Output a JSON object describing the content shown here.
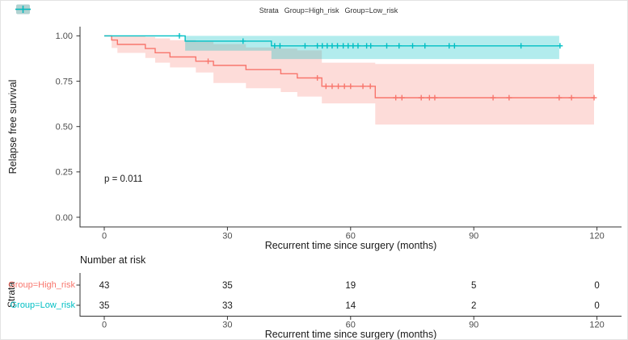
{
  "chart_data": {
    "type": "km_survival_step",
    "title": "",
    "xlabel": "Recurrent time since surgery (months)",
    "ylabel": "Relapse free survival",
    "xticks": [
      0,
      30,
      60,
      90,
      120
    ],
    "ytick_labels": [
      "0.00",
      "0.25",
      "0.50",
      "0.75",
      "1.00"
    ],
    "ytick_values": [
      0,
      0.25,
      0.5,
      0.75,
      1.0
    ],
    "xlim": [
      0,
      120
    ],
    "ylim": [
      0,
      1
    ],
    "grid": "off",
    "legend_position": "top",
    "legend_title": "Strata",
    "pvalue": "p = 0.011",
    "series": [
      {
        "name": "Group=High_risk",
        "color": "#F8766D",
        "fill": "rgba(248,118,109,0.26)",
        "steps": [
          [
            0,
            1.0
          ],
          [
            1.8,
            0.977
          ],
          [
            3.2,
            0.953
          ],
          [
            10,
            0.93
          ],
          [
            12.4,
            0.907
          ],
          [
            16,
            0.884
          ],
          [
            22.3,
            0.86
          ],
          [
            26.6,
            0.837
          ],
          [
            34.5,
            0.814
          ],
          [
            43,
            0.791
          ],
          [
            47,
            0.768
          ],
          [
            53,
            0.722
          ],
          [
            66,
            0.659
          ],
          [
            119.3,
            0.659
          ]
        ],
        "censors": [
          [
            25.3,
            0.86
          ],
          [
            51.9,
            0.768
          ],
          [
            54,
            0.722
          ],
          [
            55.5,
            0.722
          ],
          [
            57,
            0.722
          ],
          [
            58.5,
            0.722
          ],
          [
            60,
            0.722
          ],
          [
            63,
            0.722
          ],
          [
            64.8,
            0.722
          ],
          [
            71,
            0.659
          ],
          [
            72.5,
            0.659
          ],
          [
            77.2,
            0.659
          ],
          [
            79.2,
            0.659
          ],
          [
            80.5,
            0.659
          ],
          [
            94.7,
            0.659
          ],
          [
            98.6,
            0.659
          ],
          [
            110.8,
            0.659
          ],
          [
            113.8,
            0.659
          ],
          [
            119.3,
            0.659
          ]
        ],
        "ci_hi": [
          [
            1.8,
            1.0
          ],
          [
            3.2,
            0.999
          ],
          [
            10,
            0.994
          ],
          [
            12.4,
            0.986
          ],
          [
            16,
            0.976
          ],
          [
            22.3,
            0.968
          ],
          [
            26.6,
            0.955
          ],
          [
            34.5,
            0.936
          ],
          [
            43,
            0.93
          ],
          [
            47,
            0.92
          ],
          [
            53,
            0.852
          ],
          [
            66,
            0.845
          ],
          [
            119.3,
            0.845
          ]
        ],
        "ci_lo": [
          [
            1.8,
            0.933
          ],
          [
            3.2,
            0.906
          ],
          [
            10,
            0.878
          ],
          [
            12.4,
            0.852
          ],
          [
            16,
            0.826
          ],
          [
            22.3,
            0.798
          ],
          [
            26.6,
            0.74
          ],
          [
            34.5,
            0.711
          ],
          [
            43,
            0.69
          ],
          [
            47,
            0.665
          ],
          [
            53,
            0.628
          ],
          [
            66,
            0.511
          ],
          [
            119.3,
            0.511
          ]
        ]
      },
      {
        "name": "Group=Low_risk",
        "color": "#00BFC4",
        "fill": "rgba(0,191,196,0.30)",
        "steps": [
          [
            0,
            1.0
          ],
          [
            19.7,
            0.971
          ],
          [
            40.7,
            0.945
          ],
          [
            111,
            0.945
          ]
        ],
        "censors": [
          [
            18.3,
            1.0
          ],
          [
            33.8,
            0.971
          ],
          [
            41.5,
            0.945
          ],
          [
            42.8,
            0.945
          ],
          [
            48.9,
            0.945
          ],
          [
            51.9,
            0.945
          ],
          [
            53.1,
            0.945
          ],
          [
            54.3,
            0.945
          ],
          [
            55.5,
            0.945
          ],
          [
            56.8,
            0.945
          ],
          [
            58.2,
            0.945
          ],
          [
            59.4,
            0.945
          ],
          [
            60.6,
            0.945
          ],
          [
            61.8,
            0.945
          ],
          [
            63.9,
            0.945
          ],
          [
            64.9,
            0.945
          ],
          [
            68.8,
            0.945
          ],
          [
            71.8,
            0.945
          ],
          [
            75.1,
            0.945
          ],
          [
            78.1,
            0.945
          ],
          [
            84.0,
            0.945
          ],
          [
            85.3,
            0.945
          ],
          [
            101.5,
            0.945
          ],
          [
            111,
            0.945
          ]
        ],
        "ci_hi": [
          [
            19.7,
            1.0
          ],
          [
            40.7,
            1.0
          ],
          [
            110.8,
            1.0
          ]
        ],
        "ci_lo": [
          [
            19.7,
            0.918
          ],
          [
            40.7,
            0.872
          ],
          [
            110.8,
            0.872
          ]
        ]
      }
    ],
    "risk_table": {
      "title": "Number at risk",
      "ylabel": "Strata",
      "times": [
        0,
        30,
        60,
        90,
        120
      ],
      "rows": [
        {
          "label": "Group=High_risk",
          "color": "#F8766D",
          "values": [
            "43",
            "35",
            "19",
            "5",
            "0"
          ]
        },
        {
          "label": "Group=Low_risk",
          "color": "#00BFC4",
          "values": [
            "35",
            "33",
            "14",
            "2",
            "0"
          ]
        }
      ]
    }
  }
}
